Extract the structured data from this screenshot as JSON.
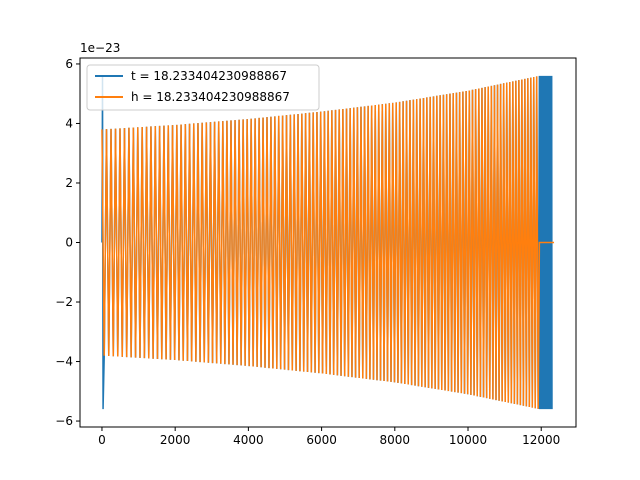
{
  "chart_data": {
    "type": "line",
    "title": "",
    "xlabel": "",
    "ylabel": "",
    "y_offset_text": "1e−23",
    "y_scale_factor": 1e-23,
    "xlim": [
      -600,
      12950
    ],
    "ylim": [
      -6.2,
      6.2
    ],
    "x_ticks": [
      0,
      2000,
      4000,
      6000,
      8000,
      10000,
      12000
    ],
    "x_tick_labels": [
      "0",
      "2000",
      "4000",
      "6000",
      "8000",
      "10000",
      "12000"
    ],
    "y_ticks": [
      -6,
      -4,
      -2,
      0,
      2,
      4,
      6
    ],
    "y_tick_labels": [
      "−6",
      "−4",
      "−2",
      "0",
      "2",
      "4",
      "6"
    ],
    "grid": false,
    "legend_position": "upper-left",
    "series": [
      {
        "name": "t = 18.233404230988867",
        "color": "#1f77b4",
        "x_range": [
          0,
          12300
        ],
        "initial_spike": [
          5.6,
          -5.6
        ],
        "envelope": [
          {
            "x": 0,
            "amp": 3.8
          },
          {
            "x": 2000,
            "amp": 3.95
          },
          {
            "x": 4000,
            "amp": 4.15
          },
          {
            "x": 6000,
            "amp": 4.4
          },
          {
            "x": 8000,
            "amp": 4.7
          },
          {
            "x": 10000,
            "amp": 5.1
          },
          {
            "x": 11950,
            "amp": 5.6
          },
          {
            "x": 12300,
            "amp": 5.6
          }
        ],
        "ringdown_start": 11950
      },
      {
        "name": "h = 18.233404230988867",
        "color": "#ff7f0e",
        "x_range": [
          0,
          12350
        ],
        "envelope": [
          {
            "x": 0,
            "amp": 3.8
          },
          {
            "x": 2000,
            "amp": 3.95
          },
          {
            "x": 4000,
            "amp": 4.15
          },
          {
            "x": 6000,
            "amp": 4.4
          },
          {
            "x": 8000,
            "amp": 4.7
          },
          {
            "x": 10000,
            "amp": 5.1
          },
          {
            "x": 11950,
            "amp": 5.6
          }
        ],
        "cutoff": 11950,
        "flat_value_after_cutoff": 0
      }
    ]
  }
}
